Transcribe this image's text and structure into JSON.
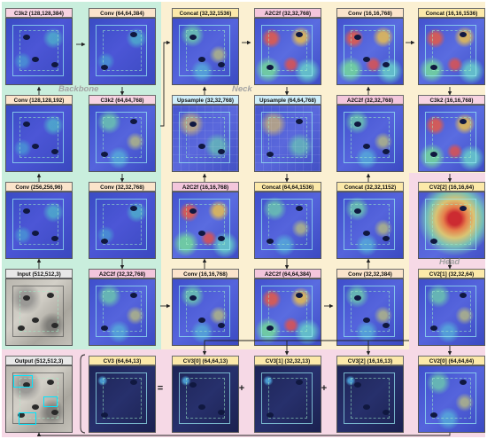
{
  "sections": {
    "backbone": "Backbone",
    "neck": "Neck",
    "head": "Head"
  },
  "panels": [
    {
      "id": "c3k2-128",
      "label": "C3k2 (128,128,384)",
      "kind": "c3k2",
      "heat": "bb"
    },
    {
      "id": "conv-64-384",
      "label": "Conv (64,64,384)",
      "kind": "conv",
      "heat": "bb"
    },
    {
      "id": "concat-32-1536",
      "label": "Concat (32,32,1536)",
      "kind": "concat",
      "heat": "mid"
    },
    {
      "id": "a2c2f-32-768-top",
      "label": "A2C2f (32,32,768)",
      "kind": "a2c2f",
      "heat": "hot"
    },
    {
      "id": "conv-16-768-top",
      "label": "Conv (16,16,768)",
      "kind": "conv",
      "heat": "hot"
    },
    {
      "id": "concat-16-1536",
      "label": "Concat (16,16,1536)",
      "kind": "concat",
      "heat": "hot"
    },
    {
      "id": "conv-128-192",
      "label": "Conv (128,128,192)",
      "kind": "conv",
      "heat": "bb"
    },
    {
      "id": "c3k2-64-768",
      "label": "C3k2 (64,64,768)",
      "kind": "c3k2",
      "heat": "mid"
    },
    {
      "id": "upsample-32-768",
      "label": "Upsample (32,32,768)",
      "kind": "up",
      "heat": "up"
    },
    {
      "id": "upsample-64-768",
      "label": "Upsample (64,64,768)",
      "kind": "up",
      "heat": "up"
    },
    {
      "id": "a2c2f-32-768-mid",
      "label": "A2C2f (32,32,768)",
      "kind": "a2c2f",
      "heat": "mid"
    },
    {
      "id": "c3k2-16-768",
      "label": "C3k2 (16,16,768)",
      "kind": "c3k2",
      "heat": "hot"
    },
    {
      "id": "conv-256-96",
      "label": "Conv (256,256,96)",
      "kind": "conv",
      "heat": "bb"
    },
    {
      "id": "conv-32-768",
      "label": "Conv (32,32,768)",
      "kind": "conv",
      "heat": "bb"
    },
    {
      "id": "a2c2f-16-768",
      "label": "A2C2f (16,16,768)",
      "kind": "a2c2f",
      "heat": "hot"
    },
    {
      "id": "concat-64-1536",
      "label": "Concat (64,64,1536)",
      "kind": "concat",
      "heat": "mid"
    },
    {
      "id": "concat-32-1152",
      "label": "Concat (32,32,1152)",
      "kind": "concat",
      "heat": "mid"
    },
    {
      "id": "cv2-2",
      "label": "CV2[2] (16,16,64)",
      "kind": "cv",
      "heat": "big"
    },
    {
      "id": "input",
      "label": "Input (512,512,3)",
      "kind": "input",
      "heat": "photo"
    },
    {
      "id": "a2c2f-32-768-low",
      "label": "A2C2f (32,32,768)",
      "kind": "a2c2f",
      "heat": "mid"
    },
    {
      "id": "conv-16-768-low",
      "label": "Conv (16,16,768)",
      "kind": "conv",
      "heat": "mid"
    },
    {
      "id": "a2c2f-64-384",
      "label": "A2C2f (64,64,384)",
      "kind": "a2c2f",
      "heat": "hot"
    },
    {
      "id": "conv-32-384",
      "label": "Conv (32,32,384)",
      "kind": "conv",
      "heat": "mid"
    },
    {
      "id": "cv2-1",
      "label": "CV2[1] (32,32,64)",
      "kind": "cv",
      "heat": "mid"
    },
    {
      "id": "output",
      "label": "Output (512,512,3)",
      "kind": "input",
      "heat": "photo"
    },
    {
      "id": "cv3",
      "label": "CV3 (64,64,13)",
      "kind": "cv",
      "heat": "dark"
    },
    {
      "id": "cv3-0",
      "label": "CV3[0] (64,64,13)",
      "kind": "cv",
      "heat": "dark"
    },
    {
      "id": "cv3-1",
      "label": "CV3[1] (32,32,13)",
      "kind": "cv",
      "heat": "dark"
    },
    {
      "id": "cv3-2",
      "label": "CV3[2] (16,16,13)",
      "kind": "cv",
      "heat": "dark"
    },
    {
      "id": "cv2-0",
      "label": "CV2[0] (64,64,64)",
      "kind": "cv",
      "heat": "mid"
    }
  ],
  "operators": [
    "=",
    "+",
    "+"
  ],
  "colors": {
    "backbone_bg": "#c9eedd",
    "neck_bg": "#fbf0d2",
    "head_bg": "#f6d9e6",
    "detection_box": "#00e5ff"
  }
}
